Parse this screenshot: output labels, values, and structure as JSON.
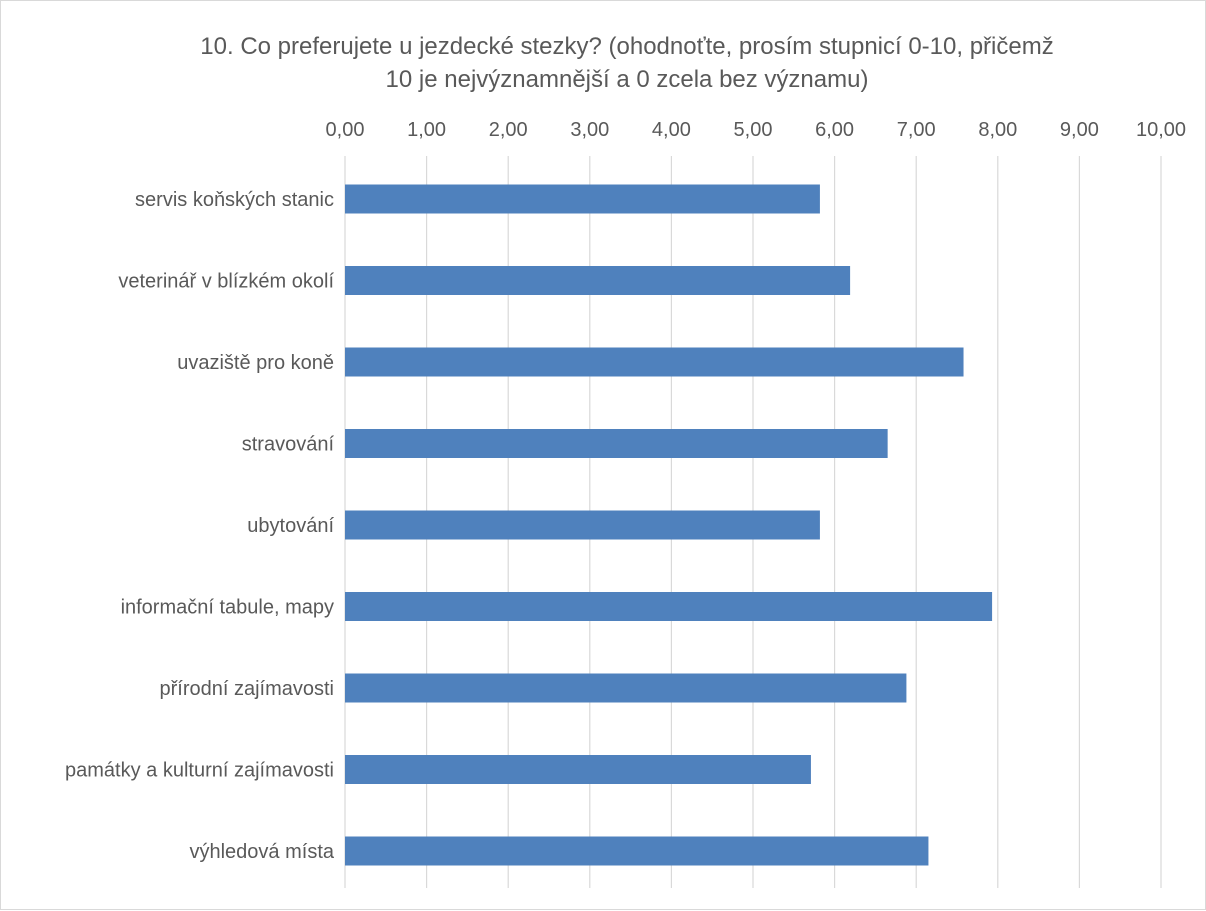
{
  "chart_data": {
    "type": "bar",
    "orientation": "horizontal",
    "title_lines": [
      "10. Co preferujete u jezdecké stezky? (ohodnoťte, prosím stupnicí 0-10, přičemž",
      "10 je nejvýznamnější a 0 zcela bez významu)"
    ],
    "categories": [
      "servis koňských stanic",
      "veterinář v blízkém okolí",
      "uvaziště pro koně",
      "stravování",
      "ubytování",
      "informační tabule, mapy",
      "přírodní zajímavosti",
      "památky a kulturní zajímavosti",
      "výhledová místa"
    ],
    "values": [
      5.82,
      6.19,
      7.58,
      6.65,
      5.82,
      7.93,
      6.88,
      5.71,
      7.15
    ],
    "xlim": [
      0,
      10
    ],
    "x_ticks": [
      "0,00",
      "1,00",
      "2,00",
      "3,00",
      "4,00",
      "5,00",
      "6,00",
      "7,00",
      "8,00",
      "9,00",
      "10,00"
    ],
    "x_axis_position": "top",
    "grid": true,
    "legend": "none",
    "bar_color": "#4f81bd"
  }
}
